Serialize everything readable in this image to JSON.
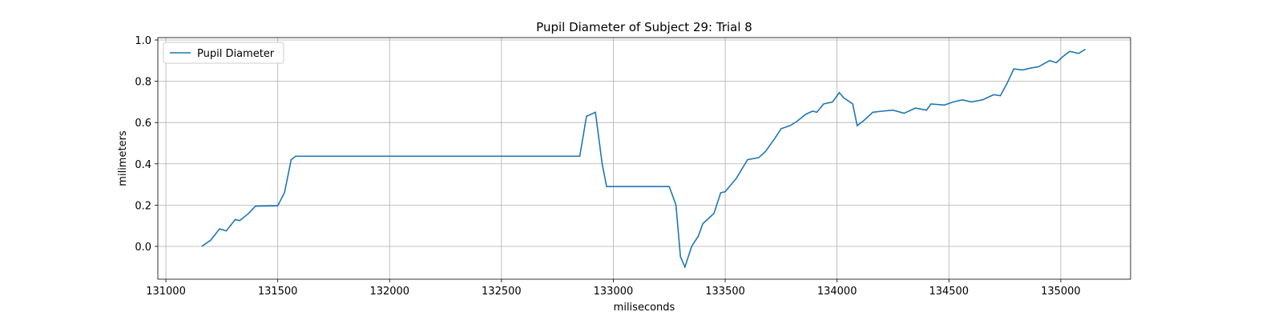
{
  "chart_data": {
    "type": "line",
    "title": "Pupil Diameter of Subject 29: Trial 8",
    "x_label": "miliseconds",
    "y_label": "milimeters",
    "x": [
      131160,
      131200,
      131240,
      131270,
      131310,
      131330,
      131370,
      131400,
      131500,
      131530,
      131560,
      131580,
      132500,
      132850,
      132880,
      132920,
      132950,
      132970,
      133250,
      133280,
      133300,
      133320,
      133350,
      133380,
      133400,
      133450,
      133480,
      133500,
      133550,
      133600,
      133650,
      133680,
      133720,
      133750,
      133790,
      133820,
      133860,
      133890,
      133910,
      133940,
      133980,
      134010,
      134030,
      134070,
      134090,
      134120,
      134160,
      134200,
      134250,
      134300,
      134350,
      134400,
      134420,
      134480,
      134520,
      134560,
      134600,
      134650,
      134700,
      134730,
      134760,
      134790,
      134830,
      134870,
      134900,
      134950,
      134980,
      135010,
      135040,
      135080,
      135110
    ],
    "series": [
      {
        "name": "Pupil Diameter",
        "color": "#1f77b4",
        "values": [
          0.0,
          0.03,
          0.085,
          0.075,
          0.13,
          0.125,
          0.16,
          0.195,
          0.197,
          0.26,
          0.42,
          0.437,
          0.437,
          0.437,
          0.63,
          0.65,
          0.4,
          0.29,
          0.29,
          0.2,
          -0.05,
          -0.1,
          0.0,
          0.05,
          0.11,
          0.16,
          0.26,
          0.265,
          0.33,
          0.42,
          0.43,
          0.46,
          0.52,
          0.57,
          0.585,
          0.605,
          0.64,
          0.655,
          0.65,
          0.69,
          0.7,
          0.745,
          0.72,
          0.69,
          0.585,
          0.61,
          0.65,
          0.655,
          0.66,
          0.645,
          0.67,
          0.66,
          0.69,
          0.685,
          0.7,
          0.71,
          0.7,
          0.71,
          0.735,
          0.73,
          0.79,
          0.86,
          0.855,
          0.865,
          0.87,
          0.9,
          0.89,
          0.92,
          0.945,
          0.935,
          0.955
        ]
      }
    ],
    "xlim": [
      130964,
      135312
    ],
    "ylim": [
      -0.159,
      1.0116
    ],
    "xticks": [
      131000,
      131500,
      132000,
      132500,
      133000,
      133500,
      134000,
      134500,
      135000
    ],
    "yticks": [
      {
        "value": 0,
        "label": "0.0"
      },
      0.2,
      0.4,
      0.6,
      0.8,
      {
        "value": 1,
        "label": "1.0"
      }
    ],
    "grid": true,
    "legend": "upper left"
  }
}
